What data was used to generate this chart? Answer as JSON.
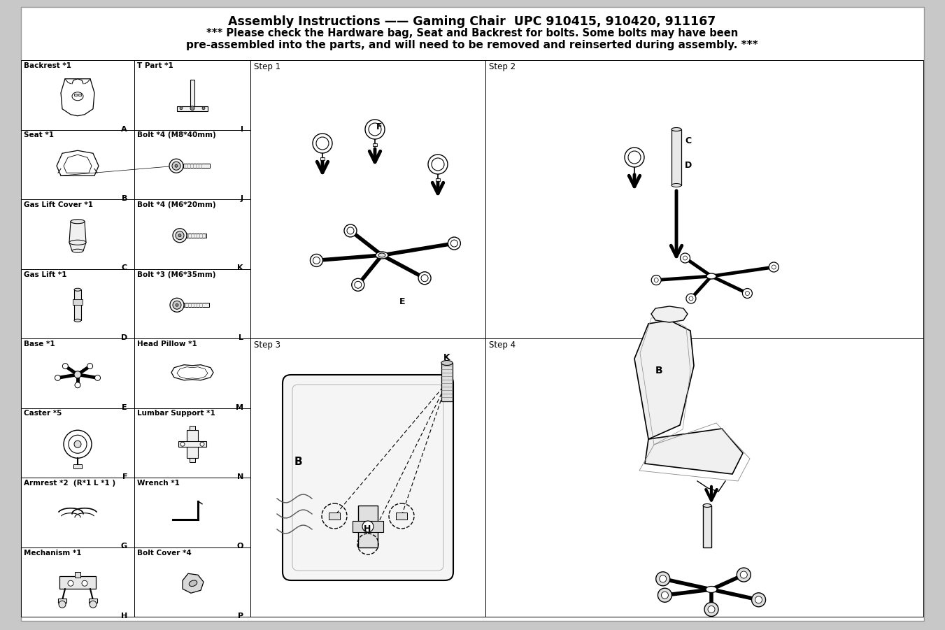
{
  "title_line1": "Assembly Instructions —— Gaming Chair  UPC 910415, 910420, 911167",
  "title_line2": "*** Please check the Hardware bag, Seat and Backrest for bolts. Some bolts may have been",
  "title_line3": "pre-assembled into the parts, and will need to be removed and reinserted during assembly. ***",
  "bg_color": "#c8c8c8",
  "panel_color": "#ffffff",
  "parts_left": [
    {
      "label": "Backrest *1",
      "letter": "A",
      "row": 0
    },
    {
      "label": "Seat *1",
      "letter": "B",
      "row": 1
    },
    {
      "label": "Gas Lift Cover *1",
      "letter": "C",
      "row": 2
    },
    {
      "label": "Gas Lift *1",
      "letter": "D",
      "row": 3
    },
    {
      "label": "Base *1",
      "letter": "E",
      "row": 4
    },
    {
      "label": "Caster *5",
      "letter": "F",
      "row": 5
    },
    {
      "label": "Armrest *2  (R*1 L *1 )",
      "letter": "G",
      "row": 6
    },
    {
      "label": "Mechanism *1",
      "letter": "H",
      "row": 7
    }
  ],
  "parts_right": [
    {
      "label": "T Part *1",
      "letter": "I",
      "row": 0
    },
    {
      "label": "Bolt *4 (M8*40mm)",
      "letter": "J",
      "row": 1
    },
    {
      "label": "Bolt *4 (M6*20mm)",
      "letter": "K",
      "row": 2
    },
    {
      "label": "Bolt *3 (M6*35mm)",
      "letter": "L",
      "row": 3
    },
    {
      "label": "Head Pillow *1",
      "letter": "M",
      "row": 4
    },
    {
      "label": "Lumbar Support *1",
      "letter": "N",
      "row": 5
    },
    {
      "label": "Wrench *1",
      "letter": "O",
      "row": 6
    },
    {
      "label": "Bolt Cover *4",
      "letter": "P",
      "row": 7
    }
  ]
}
